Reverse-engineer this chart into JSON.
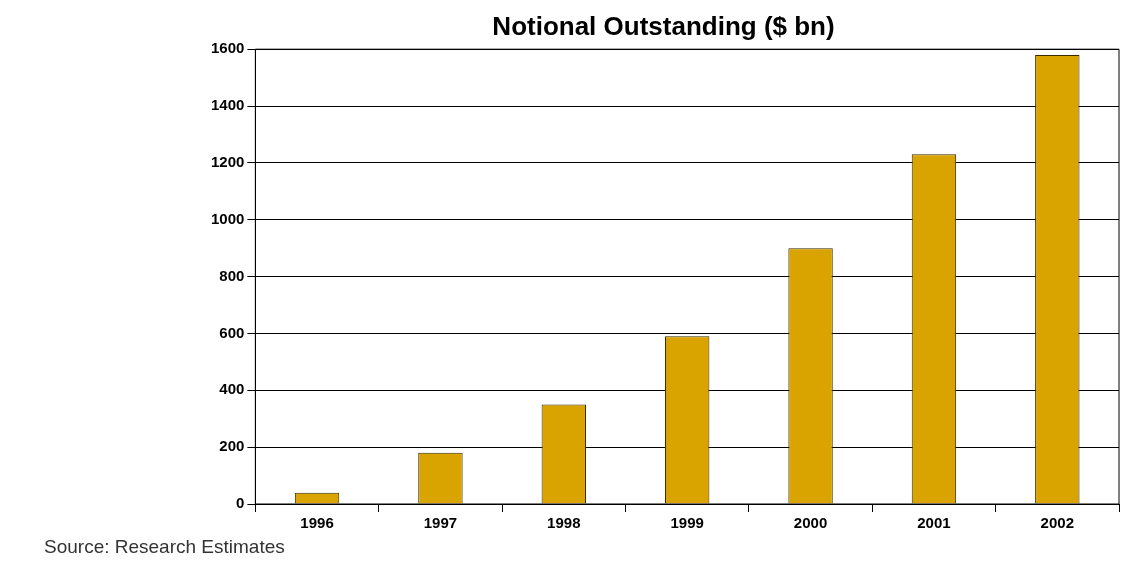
{
  "chart_data": {
    "type": "bar",
    "title": "Notional Outstanding ($ bn)",
    "categories": [
      "1996",
      "1997",
      "1998",
      "1999",
      "2000",
      "2001",
      "2002"
    ],
    "values": [
      40,
      180,
      350,
      590,
      900,
      1230,
      1580
    ],
    "color": "#d9a400",
    "ylim": [
      0,
      1600
    ],
    "yticks": [
      0,
      200,
      400,
      600,
      800,
      1000,
      1200,
      1400,
      1600
    ],
    "grid": "y",
    "legend": false,
    "annotations": [
      "Source: Research Estimates"
    ]
  }
}
